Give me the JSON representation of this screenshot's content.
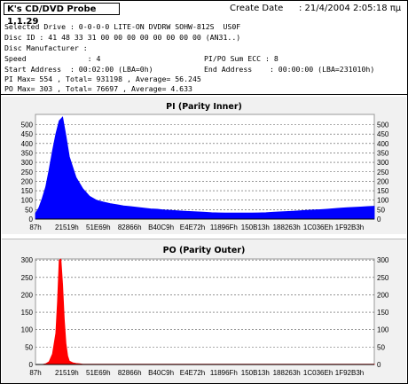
{
  "header": {
    "title": "K's CD/DVD Probe 1.1.29",
    "create_label": "Create Date",
    "create_value": ":  21/4/2004 2:05:18 πμ",
    "lines": {
      "drive": "Selected Drive : 0-0-0-0 LITE-ON DVDRW SOHW-812S  US0F",
      "disc_id": "Disc ID : 41 48 33 31 00 00 00 00 00 00 00 00 (AN31..)",
      "manufacturer": "Disc Manufacturer :",
      "speed": "Speed              : 4",
      "pipo": "PI/PO Sum ECC : 8",
      "start": "Start Address  : 00:02:00 (LBA=0h)",
      "end": "End Address    : 00:00:00 (LBA=231010h)",
      "pi_stats": "PI Max= 554 , Total= 931198 , Average= 56.245",
      "po_stats": "PO Max= 303 , Total= 76697 , Average= 4.633"
    }
  },
  "charts": {
    "pi_title": "PI (Parity Inner)",
    "po_title": "PO (Parity Outer)",
    "x_labels": [
      "87h",
      "21519h",
      "51E69h",
      "82866h",
      "B40C9h",
      "E4E72h",
      "11896Fh",
      "150B13h",
      "188263h",
      "1C036Eh",
      "1F92B3h"
    ]
  },
  "chart_data": [
    {
      "type": "area",
      "title": "PI (Parity Inner)",
      "color": "#0000ff",
      "ylim": [
        0,
        554
      ],
      "y_ticks": [
        0,
        50,
        100,
        150,
        200,
        250,
        300,
        350,
        400,
        450,
        500
      ],
      "x_tick_labels": [
        "87h",
        "21519h",
        "51E69h",
        "82866h",
        "B40C9h",
        "E4E72h",
        "11896Fh",
        "150B13h",
        "188263h",
        "1C036Eh",
        "1F92B3h"
      ],
      "x": [
        0,
        1,
        2,
        3,
        4,
        5,
        6,
        7,
        8,
        9,
        10,
        12,
        14,
        16,
        18,
        20,
        22,
        24,
        26,
        28,
        30,
        32,
        34,
        36,
        38,
        40,
        42,
        44,
        46,
        48,
        50,
        52,
        54,
        56,
        58,
        60,
        62,
        64,
        66,
        68,
        70,
        72,
        74,
        76,
        78,
        80,
        82,
        84,
        86,
        88,
        90,
        92,
        94,
        96,
        98,
        100
      ],
      "values": [
        30,
        60,
        110,
        170,
        260,
        360,
        450,
        520,
        540,
        440,
        330,
        220,
        160,
        120,
        100,
        90,
        82,
        76,
        70,
        66,
        62,
        58,
        54,
        52,
        48,
        46,
        44,
        42,
        40,
        38,
        36,
        34,
        33,
        32,
        32,
        32,
        32,
        32,
        33,
        34,
        36,
        38,
        40,
        42,
        44,
        46,
        48,
        50,
        52,
        55,
        58,
        60,
        62,
        64,
        66,
        68
      ],
      "grid": true,
      "legend": "none"
    },
    {
      "type": "area",
      "title": "PO (Parity Outer)",
      "color": "#ff0000",
      "ylim": [
        0,
        303
      ],
      "y_ticks": [
        0,
        50,
        100,
        150,
        200,
        250,
        300
      ],
      "x_tick_labels": [
        "87h",
        "21519h",
        "51E69h",
        "82866h",
        "B40C9h",
        "E4E72h",
        "11896Fh",
        "150B13h",
        "188263h",
        "1C036Eh",
        "1F92B3h"
      ],
      "x": [
        0,
        2,
        3,
        4,
        5,
        6,
        6.5,
        7,
        7.5,
        8,
        8.5,
        9,
        9.5,
        10,
        11,
        12,
        13,
        14,
        16,
        20,
        30,
        40,
        50,
        60,
        70,
        80,
        90,
        100
      ],
      "values": [
        0,
        0,
        2,
        8,
        30,
        90,
        180,
        300,
        303,
        230,
        130,
        60,
        25,
        10,
        5,
        3,
        2,
        1,
        1,
        1,
        1,
        1,
        1,
        1,
        1,
        1,
        1,
        1
      ],
      "grid": true,
      "legend": "none"
    }
  ]
}
